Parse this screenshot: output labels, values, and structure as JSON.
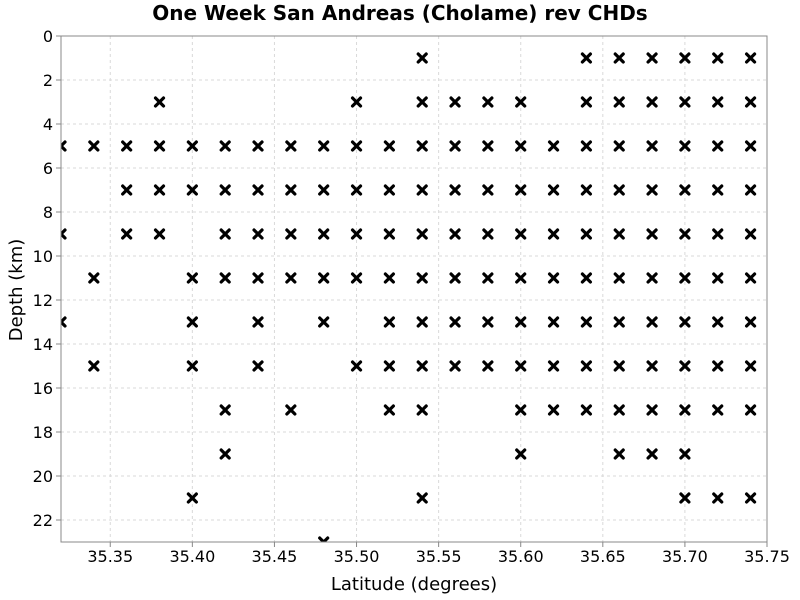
{
  "chart_data": {
    "type": "scatter",
    "title": "One Week San Andreas (Cholame) rev CHDs",
    "xlabel": "Latitude (degrees)",
    "ylabel": "Depth (km)",
    "xlim": [
      35.32,
      35.75
    ],
    "ylim": [
      23,
      0
    ],
    "y_inverted": true,
    "grid": true,
    "marker": "x",
    "marker_color": "#000000",
    "x_ticks": [
      "35.35",
      "35.40",
      "35.45",
      "35.50",
      "35.55",
      "35.60",
      "35.65",
      "35.70",
      "35.75"
    ],
    "y_ticks": [
      "0",
      "2",
      "4",
      "6",
      "8",
      "10",
      "12",
      "14",
      "16",
      "18",
      "20",
      "22"
    ],
    "points": [
      [
        35.54,
        1
      ],
      [
        35.64,
        1
      ],
      [
        35.66,
        1
      ],
      [
        35.68,
        1
      ],
      [
        35.7,
        1
      ],
      [
        35.72,
        1
      ],
      [
        35.74,
        1
      ],
      [
        35.38,
        3
      ],
      [
        35.5,
        3
      ],
      [
        35.54,
        3
      ],
      [
        35.56,
        3
      ],
      [
        35.58,
        3
      ],
      [
        35.6,
        3
      ],
      [
        35.64,
        3
      ],
      [
        35.66,
        3
      ],
      [
        35.68,
        3
      ],
      [
        35.7,
        3
      ],
      [
        35.72,
        3
      ],
      [
        35.74,
        3
      ],
      [
        35.32,
        5
      ],
      [
        35.34,
        5
      ],
      [
        35.36,
        5
      ],
      [
        35.38,
        5
      ],
      [
        35.4,
        5
      ],
      [
        35.42,
        5
      ],
      [
        35.44,
        5
      ],
      [
        35.46,
        5
      ],
      [
        35.48,
        5
      ],
      [
        35.5,
        5
      ],
      [
        35.52,
        5
      ],
      [
        35.54,
        5
      ],
      [
        35.56,
        5
      ],
      [
        35.58,
        5
      ],
      [
        35.6,
        5
      ],
      [
        35.62,
        5
      ],
      [
        35.64,
        5
      ],
      [
        35.66,
        5
      ],
      [
        35.68,
        5
      ],
      [
        35.7,
        5
      ],
      [
        35.72,
        5
      ],
      [
        35.74,
        5
      ],
      [
        35.36,
        7
      ],
      [
        35.38,
        7
      ],
      [
        35.4,
        7
      ],
      [
        35.42,
        7
      ],
      [
        35.44,
        7
      ],
      [
        35.46,
        7
      ],
      [
        35.48,
        7
      ],
      [
        35.5,
        7
      ],
      [
        35.52,
        7
      ],
      [
        35.54,
        7
      ],
      [
        35.56,
        7
      ],
      [
        35.58,
        7
      ],
      [
        35.6,
        7
      ],
      [
        35.62,
        7
      ],
      [
        35.64,
        7
      ],
      [
        35.66,
        7
      ],
      [
        35.68,
        7
      ],
      [
        35.7,
        7
      ],
      [
        35.72,
        7
      ],
      [
        35.74,
        7
      ],
      [
        35.32,
        9
      ],
      [
        35.36,
        9
      ],
      [
        35.38,
        9
      ],
      [
        35.42,
        9
      ],
      [
        35.44,
        9
      ],
      [
        35.46,
        9
      ],
      [
        35.48,
        9
      ],
      [
        35.5,
        9
      ],
      [
        35.52,
        9
      ],
      [
        35.54,
        9
      ],
      [
        35.56,
        9
      ],
      [
        35.58,
        9
      ],
      [
        35.6,
        9
      ],
      [
        35.62,
        9
      ],
      [
        35.64,
        9
      ],
      [
        35.66,
        9
      ],
      [
        35.68,
        9
      ],
      [
        35.7,
        9
      ],
      [
        35.72,
        9
      ],
      [
        35.74,
        9
      ],
      [
        35.34,
        11
      ],
      [
        35.4,
        11
      ],
      [
        35.42,
        11
      ],
      [
        35.44,
        11
      ],
      [
        35.46,
        11
      ],
      [
        35.48,
        11
      ],
      [
        35.5,
        11
      ],
      [
        35.52,
        11
      ],
      [
        35.54,
        11
      ],
      [
        35.56,
        11
      ],
      [
        35.58,
        11
      ],
      [
        35.6,
        11
      ],
      [
        35.62,
        11
      ],
      [
        35.64,
        11
      ],
      [
        35.66,
        11
      ],
      [
        35.68,
        11
      ],
      [
        35.7,
        11
      ],
      [
        35.72,
        11
      ],
      [
        35.74,
        11
      ],
      [
        35.32,
        13
      ],
      [
        35.4,
        13
      ],
      [
        35.44,
        13
      ],
      [
        35.48,
        13
      ],
      [
        35.52,
        13
      ],
      [
        35.54,
        13
      ],
      [
        35.56,
        13
      ],
      [
        35.58,
        13
      ],
      [
        35.6,
        13
      ],
      [
        35.62,
        13
      ],
      [
        35.64,
        13
      ],
      [
        35.66,
        13
      ],
      [
        35.68,
        13
      ],
      [
        35.7,
        13
      ],
      [
        35.72,
        13
      ],
      [
        35.74,
        13
      ],
      [
        35.34,
        15
      ],
      [
        35.4,
        15
      ],
      [
        35.44,
        15
      ],
      [
        35.5,
        15
      ],
      [
        35.52,
        15
      ],
      [
        35.54,
        15
      ],
      [
        35.56,
        15
      ],
      [
        35.58,
        15
      ],
      [
        35.6,
        15
      ],
      [
        35.62,
        15
      ],
      [
        35.64,
        15
      ],
      [
        35.66,
        15
      ],
      [
        35.68,
        15
      ],
      [
        35.7,
        15
      ],
      [
        35.72,
        15
      ],
      [
        35.74,
        15
      ],
      [
        35.42,
        17
      ],
      [
        35.46,
        17
      ],
      [
        35.52,
        17
      ],
      [
        35.54,
        17
      ],
      [
        35.6,
        17
      ],
      [
        35.62,
        17
      ],
      [
        35.64,
        17
      ],
      [
        35.66,
        17
      ],
      [
        35.68,
        17
      ],
      [
        35.7,
        17
      ],
      [
        35.72,
        17
      ],
      [
        35.74,
        17
      ],
      [
        35.42,
        19
      ],
      [
        35.6,
        19
      ],
      [
        35.66,
        19
      ],
      [
        35.68,
        19
      ],
      [
        35.7,
        19
      ],
      [
        35.4,
        21
      ],
      [
        35.54,
        21
      ],
      [
        35.7,
        21
      ],
      [
        35.72,
        21
      ],
      [
        35.74,
        21
      ],
      [
        35.48,
        23
      ]
    ]
  }
}
